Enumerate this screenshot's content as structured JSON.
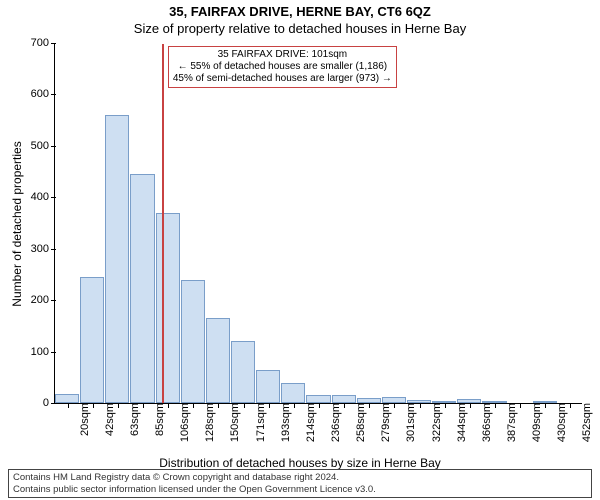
{
  "title1": "35, FAIRFAX DRIVE, HERNE BAY, CT6 6QZ",
  "title2": "Size of property relative to detached houses in Herne Bay",
  "ylabel": "Number of detached properties",
  "xlabel": "Distribution of detached houses by size in Herne Bay",
  "chart": {
    "type": "histogram",
    "ylim": [
      0,
      700
    ],
    "ytick_step": 100,
    "bar_fill": "#cedff2",
    "bar_border": "#7a9ec9",
    "bars": [
      {
        "label": "20sqm",
        "value": 18
      },
      {
        "label": "42sqm",
        "value": 245
      },
      {
        "label": "63sqm",
        "value": 560
      },
      {
        "label": "85sqm",
        "value": 445
      },
      {
        "label": "106sqm",
        "value": 370
      },
      {
        "label": "128sqm",
        "value": 240
      },
      {
        "label": "150sqm",
        "value": 165
      },
      {
        "label": "171sqm",
        "value": 120
      },
      {
        "label": "193sqm",
        "value": 65
      },
      {
        "label": "214sqm",
        "value": 38
      },
      {
        "label": "236sqm",
        "value": 15
      },
      {
        "label": "258sqm",
        "value": 15
      },
      {
        "label": "279sqm",
        "value": 10
      },
      {
        "label": "301sqm",
        "value": 12
      },
      {
        "label": "322sqm",
        "value": 5
      },
      {
        "label": "344sqm",
        "value": 2
      },
      {
        "label": "366sqm",
        "value": 8
      },
      {
        "label": "387sqm",
        "value": 2
      },
      {
        "label": "409sqm",
        "value": 0
      },
      {
        "label": "430sqm",
        "value": 2
      },
      {
        "label": "452sqm",
        "value": 0
      }
    ],
    "marker_line_index": 3.75,
    "marker_color": "#c84242"
  },
  "annotation": {
    "line1": "35 FAIRFAX DRIVE: 101sqm",
    "line2": "← 55% of detached houses are smaller (1,186)",
    "line3": "45% of semi-detached houses are larger (973) →",
    "border_color": "#c84242"
  },
  "footer": {
    "line1": "Contains HM Land Registry data © Crown copyright and database right 2024.",
    "line2": "Contains public sector information licensed under the Open Government Licence v3.0."
  }
}
